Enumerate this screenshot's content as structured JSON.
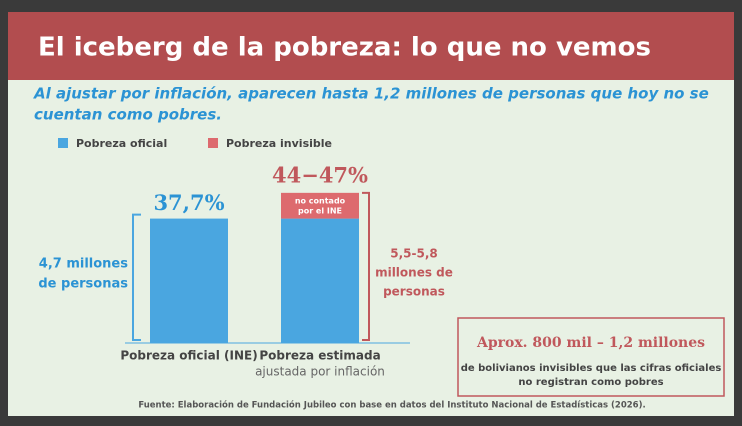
{
  "chart_data": {
    "type": "stacked-bar",
    "title": "El iceberg de la pobreza: lo que no vemos",
    "subtitle": [
      "Al ajustar por inflación, aparecen hasta 1,2 millones de personas que hoy no se",
      "cuentan como pobres."
    ],
    "categories": [
      "Pobreza oficial (INE)",
      "Pobreza estimada"
    ],
    "category_notes": [
      null,
      "ajustada por inflación"
    ],
    "series": [
      {
        "name": "Pobreza oficial",
        "color": "#4aa6e0",
        "values": [
          37.7,
          37.7
        ],
        "value_labels": [
          "37,7%",
          null
        ]
      },
      {
        "name": "Pobreza invisible",
        "color": "#dd6a6e",
        "values": [
          null,
          7.8
        ]
      }
    ],
    "ylim": [
      0,
      50
    ],
    "total_label": "44−47%",
    "segment_note": [
      "no contado",
      "por el INE"
    ],
    "left_bracket_label": [
      "4,7 millones",
      "de personas"
    ],
    "right_bracket_label": [
      "5,5-5,8",
      "millones de",
      "personas"
    ],
    "box_title": "Aprox. 800 mil – 1,2 millones",
    "box_text": [
      "de bolivianos invisibles que las cifras oficiales",
      "no registran como pobres"
    ],
    "source": "Fuente: Elaboración de Fundación Jubileo con base en datos del Instituto Nacional de Estadísticas (2026)."
  }
}
